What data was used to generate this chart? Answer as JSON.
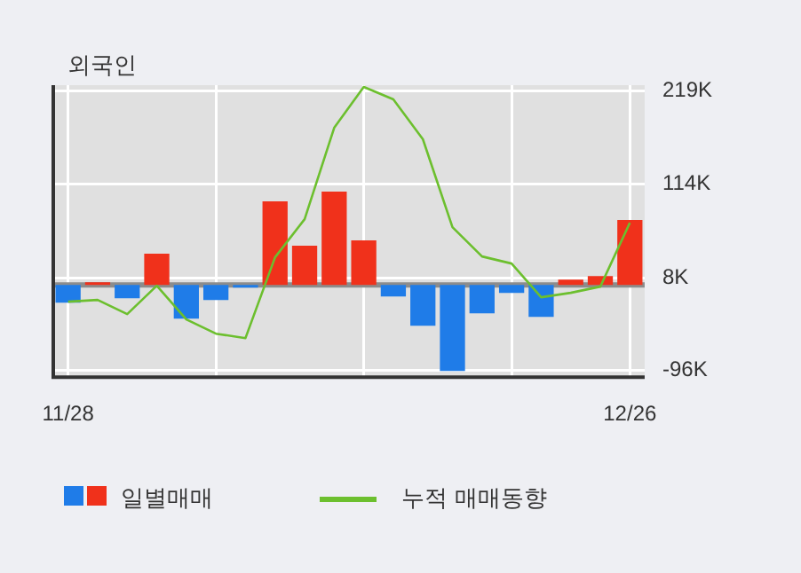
{
  "chart_data": {
    "type": "bar",
    "title": "외국인",
    "categories": [
      "11/28",
      null,
      null,
      null,
      null,
      null,
      null,
      null,
      null,
      null,
      null,
      null,
      null,
      null,
      null,
      null,
      null,
      null,
      null,
      "12/26"
    ],
    "series": [
      {
        "name": "일별매매",
        "colors": [
          "#1f7ce8",
          "#f0311b",
          "#1f7ce8",
          "#f0311b",
          "#1f7ce8",
          "#1f7ce8",
          "#1f7ce8",
          "#f0311b",
          "#f0311b",
          "#f0311b",
          "#f0311b",
          "#1f7ce8",
          "#1f7ce8",
          "#1f7ce8",
          "#1f7ce8",
          "#1f7ce8",
          "#1f7ce8",
          "#f0311b",
          "#f0311b",
          "#f0311b"
        ],
        "values": [
          -20,
          3,
          -15,
          35,
          -38,
          -17,
          -3,
          94,
          44,
          105,
          50,
          -13,
          -46,
          -97,
          -32,
          -9,
          -36,
          6,
          10,
          73
        ]
      },
      {
        "type": "line",
        "name": "누적 매매동향",
        "color": "#6cbf2e",
        "values": [
          -19,
          -17,
          -33,
          -1,
          -39,
          -55,
          -60,
          31,
          74,
          177,
          223,
          209,
          164,
          65,
          32,
          24,
          -14,
          -9,
          -2,
          70
        ]
      }
    ],
    "ylim": [
      -104,
      225
    ],
    "yticks": [
      {
        "value": -96,
        "label": "-96K"
      },
      {
        "value": 8,
        "label": "8K"
      },
      {
        "value": 114,
        "label": "114K"
      },
      {
        "value": 219,
        "label": "219K"
      }
    ],
    "ref_lines": [
      {
        "axis": "y",
        "value": 0,
        "color": "#8c8c8c"
      }
    ],
    "grid": true,
    "legend": "bottom",
    "marker": "none"
  }
}
